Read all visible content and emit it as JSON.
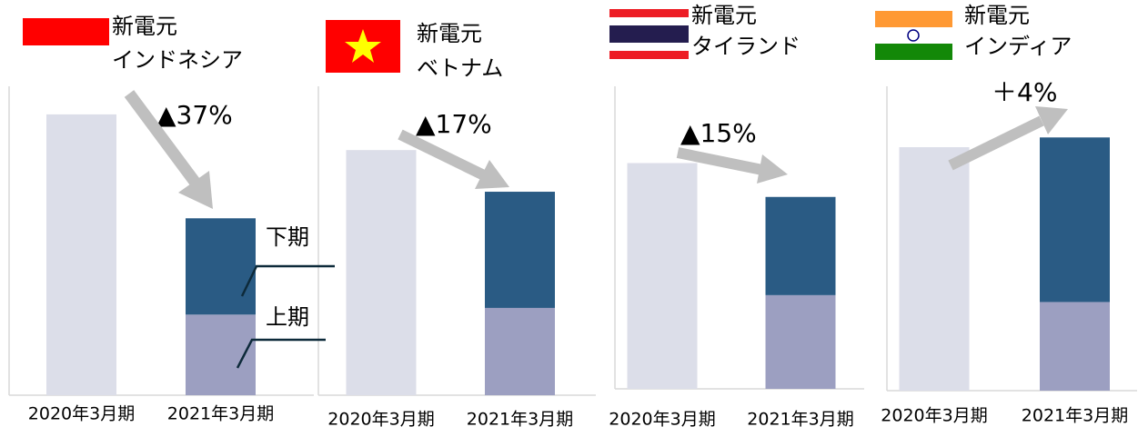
{
  "chart_data": [
    {
      "type": "stacked_bar",
      "title": [
        "新電元",
        "インドネシア"
      ],
      "change": "▲37%",
      "categories": [
        "2020年3月期",
        "2021年3月期"
      ],
      "values": [
        100,
        null
      ],
      "color": "#dcdee9",
      "series": [
        {
          "name": "上期",
          "color": "#9c9fc1",
          "values": [
            null,
            28.7
          ]
        },
        {
          "name": "下期",
          "color": "#2a5b84",
          "values": [
            null,
            34.3
          ]
        }
      ],
      "ylim": [
        0,
        110
      ]
    },
    {
      "type": "stacked_bar",
      "title": [
        "新電元",
        "ベトナム"
      ],
      "change": "▲17%",
      "categories": [
        "2020年3月期",
        "2021年3月期"
      ],
      "values": [
        100,
        null
      ],
      "color": "#dcdee9",
      "series": [
        {
          "color": "#9c9fc1",
          "values": [
            null,
            35.6
          ]
        },
        {
          "color": "#2a5b84",
          "values": [
            null,
            47.4
          ]
        }
      ],
      "ylim": [
        0,
        126
      ]
    },
    {
      "type": "stacked_bar",
      "title": [
        "新電元",
        "タイランド"
      ],
      "change": "▲15%",
      "categories": [
        "2020年3月期",
        "2021年3月期"
      ],
      "values": [
        100,
        null
      ],
      "color": "#dcdee9",
      "series": [
        {
          "color": "#9c9fc1",
          "values": [
            null,
            41.5
          ]
        },
        {
          "color": "#2a5b84",
          "values": [
            null,
            43.5
          ]
        }
      ],
      "ylim": [
        0,
        134
      ]
    },
    {
      "type": "stacked_bar",
      "title": [
        "新電元",
        "インディア"
      ],
      "change": "＋4%",
      "categories": [
        "2020年3月期",
        "2021年3月期"
      ],
      "values": [
        100,
        null
      ],
      "color": "#dcdee9",
      "series": [
        {
          "color": "#9c9fc1",
          "values": [
            null,
            36.4
          ]
        },
        {
          "color": "#2a5b84",
          "values": [
            null,
            67.6
          ]
        }
      ],
      "ylim": [
        0,
        125
      ]
    }
  ]
}
